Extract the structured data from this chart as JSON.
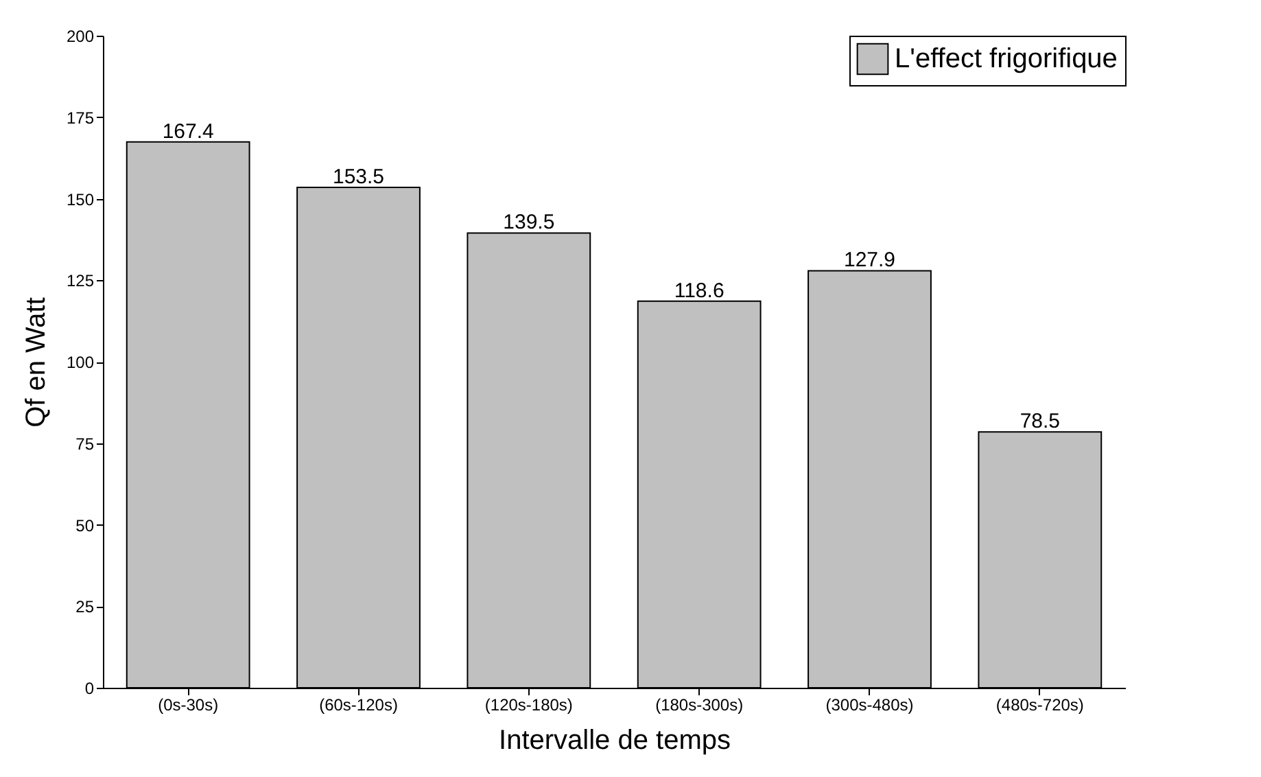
{
  "chart_data": {
    "type": "bar",
    "xlabel": "Intervalle de temps",
    "ylabel": "Qf  en Watt",
    "categories": [
      "(0s-30s)",
      "(60s-120s)",
      "(120s-180s)",
      "(180s-300s)",
      "(300s-480s)",
      "(480s-720s)"
    ],
    "series": [
      {
        "name": "L'effect frigorifique",
        "color": "#c0c0c0",
        "values": [
          167.4,
          153.5,
          139.5,
          118.6,
          127.9,
          78.5
        ]
      }
    ],
    "ylim": [
      0,
      200
    ],
    "yticks": [
      0,
      25,
      50,
      75,
      100,
      125,
      150,
      175,
      200
    ],
    "data_labels": true,
    "legend": "top right",
    "grid": false
  }
}
